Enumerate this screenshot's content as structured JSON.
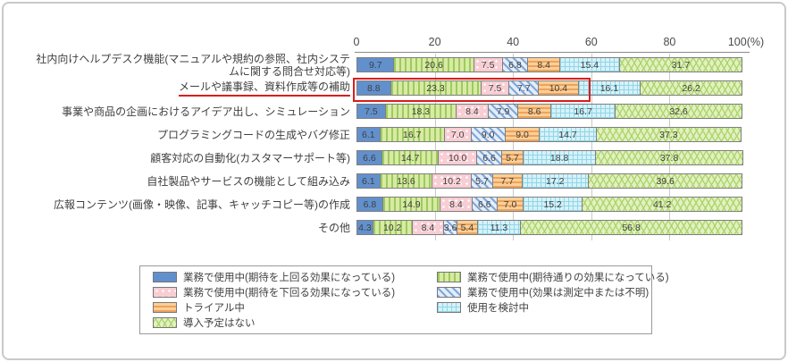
{
  "chart_data": {
    "type": "bar",
    "stacked": true,
    "orientation": "horizontal",
    "unit": "%",
    "title": "",
    "x_axis": {
      "tick_values": [
        0,
        20,
        40,
        60,
        80,
        100
      ],
      "tick_labels": [
        "0",
        "20",
        "40",
        "60",
        "80",
        "100(%)"
      ],
      "range": [
        0,
        100
      ],
      "grid": true
    },
    "categories": [
      "社内向けヘルプデスク機能(マニュアルや規約の参照、社内システムに関する問合せ対応等)",
      "メールや議事録、資料作成等の補助",
      "事業や商品の企画におけるアイデア出し、シミュレーション",
      "プログラミングコードの生成やバグ修正",
      "顧客対応の自動化(カスタマーサポート等)",
      "自社製品やサービスの機能として組み込み",
      "広報コンテンツ(画像・映像、記事、キャッチコピー等)の作成",
      "その他"
    ],
    "series": [
      {
        "name": "業務で使用中(期待を上回る効果になっている)",
        "pattern": "solid-blue",
        "fill": "#6290cd",
        "accent": "#6290cd",
        "values": [
          9.7,
          8.8,
          7.5,
          6.1,
          6.6,
          6.1,
          6.8,
          4.3
        ]
      },
      {
        "name": "業務で使用中(期待通りの効果になっている)",
        "pattern": "green-vstripe",
        "fill": "#d9eaa3",
        "accent": "#9bcb60",
        "values": [
          20.6,
          23.3,
          18.3,
          16.7,
          14.7,
          13.6,
          14.9,
          10.2
        ]
      },
      {
        "name": "業務で使用中(期待を下回る効果になっている)",
        "pattern": "pink-dot",
        "fill": "#f8cdd3",
        "accent": "#ffffff",
        "values": [
          7.5,
          7.5,
          8.4,
          7.0,
          10.0,
          10.2,
          8.4,
          8.4
        ]
      },
      {
        "name": "業務で使用中(効果は測定中または不明)",
        "pattern": "blue-diag",
        "fill": "#e4edf8",
        "accent": "#7ea8db",
        "values": [
          6.8,
          7.7,
          7.9,
          9.0,
          6.6,
          5.7,
          6.6,
          3.6
        ]
      },
      {
        "name": "トライアル中",
        "pattern": "orange-hstripe",
        "fill": "#fbcf97",
        "accent": "#eda35b",
        "values": [
          8.4,
          10.4,
          8.6,
          9.0,
          5.7,
          7.7,
          7.0,
          5.4
        ]
      },
      {
        "name": "使用を検討中",
        "pattern": "cyan-grid",
        "fill": "#d8f1f8",
        "accent": "#8ed7e9",
        "values": [
          15.4,
          16.1,
          16.7,
          14.7,
          18.8,
          17.2,
          15.2,
          11.3
        ]
      },
      {
        "name": "導入予定はない",
        "pattern": "green-wave",
        "fill": "#e3f0c0",
        "accent": "#a9d56b",
        "values": [
          31.7,
          26.2,
          32.6,
          37.3,
          37.8,
          39.6,
          41.2,
          56.8
        ]
      }
    ],
    "legend_position": "bottom",
    "annotations": {
      "highlighted_category_index": 1,
      "highlighted_category": "メールや議事録、資料作成等の補助",
      "highlight_color": "#d81e1e",
      "highlight_box_span_percent": 57.7
    }
  }
}
